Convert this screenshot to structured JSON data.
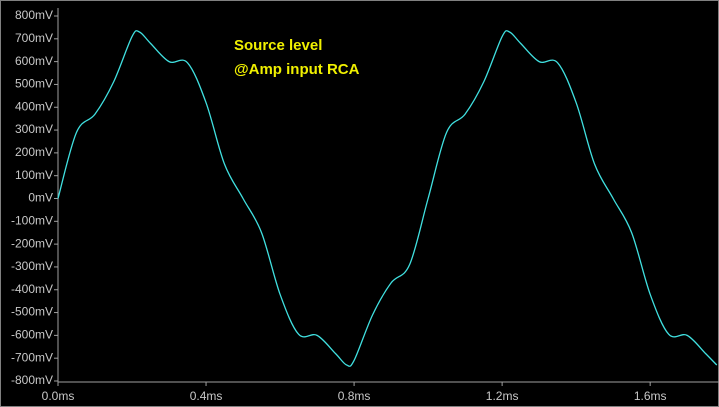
{
  "chart_data": {
    "type": "line",
    "annotations": [
      "Source level",
      "@Amp input RCA"
    ],
    "x": [
      0,
      0.05,
      0.1,
      0.15,
      0.2,
      0.22,
      0.25,
      0.3,
      0.35,
      0.4,
      0.45,
      0.5,
      0.55,
      0.6,
      0.65,
      0.7,
      0.75,
      0.78,
      0.8,
      0.85,
      0.9,
      0.95,
      1.0,
      1.05,
      1.1,
      1.15,
      1.2,
      1.22,
      1.25,
      1.3,
      1.35,
      1.4,
      1.45,
      1.5,
      1.55,
      1.6,
      1.65,
      1.7,
      1.75,
      1.78
    ],
    "series": [
      {
        "color": "#40e0e0",
        "values": [
          0,
          290,
          370,
          510,
          710,
          730,
          680,
          600,
          595,
          420,
          150,
          0,
          -150,
          -420,
          -595,
          -600,
          -680,
          -730,
          -710,
          -510,
          -370,
          -290,
          0,
          290,
          370,
          510,
          710,
          730,
          680,
          600,
          595,
          420,
          150,
          0,
          -150,
          -420,
          -595,
          -600,
          -680,
          -730
        ]
      }
    ],
    "xlim": [
      0,
      1.786
    ],
    "ylim": [
      -800,
      800
    ],
    "xticks": [
      {
        "value": 0,
        "label": "0.0ms"
      },
      {
        "value": 0.4,
        "label": "0.4ms"
      },
      {
        "value": 0.8,
        "label": "0.8ms"
      },
      {
        "value": 1.2,
        "label": "1.2ms"
      },
      {
        "value": 1.6,
        "label": "1.6ms"
      }
    ],
    "yticks": [
      {
        "value": 800,
        "label": "800mV"
      },
      {
        "value": 700,
        "label": "700mV"
      },
      {
        "value": 600,
        "label": "600mV"
      },
      {
        "value": 500,
        "label": "500mV"
      },
      {
        "value": 400,
        "label": "400mV"
      },
      {
        "value": 300,
        "label": "300mV"
      },
      {
        "value": 200,
        "label": "200mV"
      },
      {
        "value": 100,
        "label": "100mV"
      },
      {
        "value": 0,
        "label": "0mV"
      },
      {
        "value": -100,
        "label": "-100mV"
      },
      {
        "value": -200,
        "label": "-200mV"
      },
      {
        "value": -300,
        "label": "-300mV"
      },
      {
        "value": -400,
        "label": "-400mV"
      },
      {
        "value": -500,
        "label": "-500mV"
      },
      {
        "value": -600,
        "label": "-600mV"
      },
      {
        "value": -700,
        "label": "-700mV"
      },
      {
        "value": -800,
        "label": "-800mV"
      }
    ]
  }
}
